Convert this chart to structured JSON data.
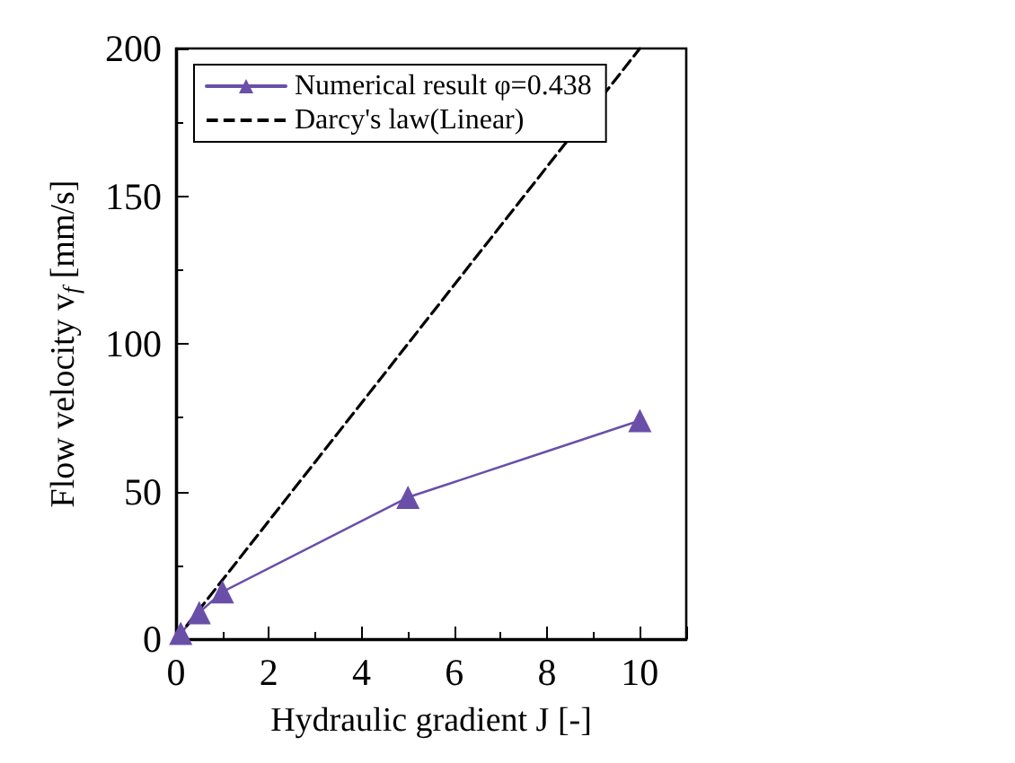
{
  "chart_data": {
    "type": "line",
    "xlabel": "Hydraulic gradient J [-]",
    "ylabel": "Flow velocity v$_{f}$ [mm/s]",
    "xlim": [
      0,
      11
    ],
    "xticks": [
      0,
      2,
      4,
      6,
      8,
      10
    ],
    "ylim": [
      0,
      200
    ],
    "yticks": [
      0,
      50,
      100,
      150,
      200
    ],
    "grid": false,
    "legend": "top left",
    "series": [
      {
        "name": "Numerical result φ=0.438",
        "color": "#6a4fa8",
        "marker": "triangle",
        "line_style": "solid",
        "x": [
          0.1,
          0.5,
          1,
          5,
          10
        ],
        "values": [
          2,
          9,
          16,
          48,
          74
        ]
      },
      {
        "name": "Darcy's law(Linear)",
        "color": "#000000",
        "marker": "none",
        "line_style": "dashed",
        "x": [
          0,
          10
        ],
        "values": [
          0,
          200
        ]
      }
    ]
  }
}
